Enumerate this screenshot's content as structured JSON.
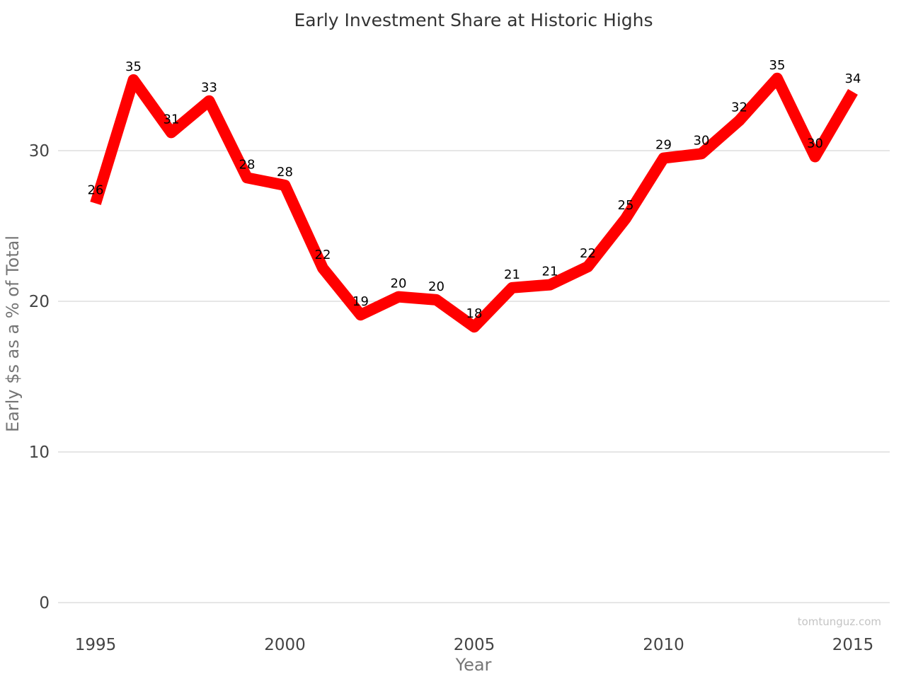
{
  "chart_data": {
    "type": "line",
    "title": "Early Investment Share at Historic Highs",
    "xlabel": "Year",
    "ylabel": "Early $s as a % of Total",
    "x": [
      1995,
      1996,
      1997,
      1998,
      1999,
      2000,
      2001,
      2002,
      2003,
      2004,
      2005,
      2006,
      2007,
      2008,
      2009,
      2010,
      2011,
      2012,
      2013,
      2014,
      2015
    ],
    "series": [
      {
        "values": [
          26.5,
          34.7,
          31.2,
          33.3,
          28.2,
          27.7,
          22.2,
          19.1,
          20.3,
          20.1,
          18.3,
          20.9,
          21.1,
          22.3,
          25.5,
          29.5,
          29.8,
          32.0,
          34.8,
          29.6,
          33.9
        ],
        "labels": [
          "26",
          "35",
          "31",
          "33",
          "28",
          "28",
          "22",
          "19",
          "20",
          "20",
          "18",
          "21",
          "21",
          "22",
          "25",
          "29",
          "30",
          "32",
          "35",
          "30",
          "34"
        ],
        "color": "#ff0000"
      }
    ],
    "xticks": [
      "1995",
      "2000",
      "2005",
      "2010",
      "2015"
    ],
    "yticks": [
      "0",
      "10",
      "20",
      "30"
    ],
    "xlim": [
      1994.15,
      2015.95
    ],
    "ylim": [
      0,
      40
    ],
    "grid": "horizontal",
    "legend": "none",
    "watermark": "tomtunguz.com"
  }
}
